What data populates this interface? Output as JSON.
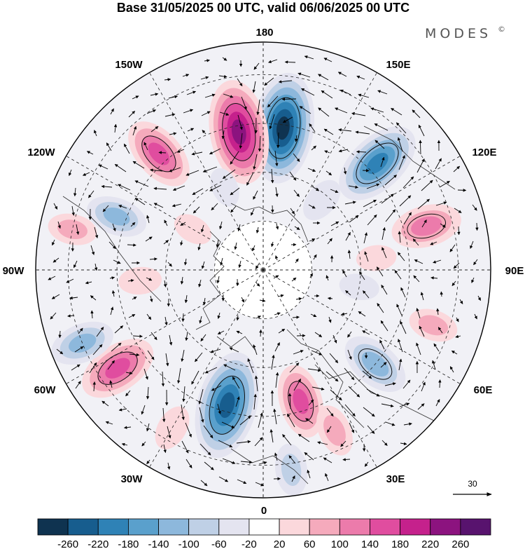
{
  "title": "Base 31/05/2025 00 UTC, valid 06/06/2025 00 UTC",
  "brand": {
    "name": "MODES",
    "mark": "©"
  },
  "longitude_labels": {
    "lon_180": "180",
    "lon_150E": "150E",
    "lon_120E": "120E",
    "lon_90E": "90E",
    "lon_60E": "60E",
    "lon_30E": "30E",
    "lon_0": "0",
    "lon_30W": "30W",
    "lon_60W": "60W",
    "lon_90W": "90W",
    "lon_120W": "120W",
    "lon_150W": "150W"
  },
  "reference_vector": {
    "label": "30"
  },
  "colorbar": {
    "colors": [
      "#0f3350",
      "#175d8e",
      "#2f82b6",
      "#5aa0cc",
      "#8db8dc",
      "#bfd0e6",
      "#e4e4f0",
      "#ffffff",
      "#fbd8dc",
      "#f5aabc",
      "#ec7bab",
      "#e04d9f",
      "#c5218c",
      "#8c137f",
      "#58136e"
    ],
    "ticks": [
      "-260",
      "-220",
      "-180",
      "-140",
      "-100",
      "-60",
      "-20",
      "20",
      "60",
      "100",
      "140",
      "180",
      "220",
      "260"
    ]
  },
  "anomaly_blobs": [
    {
      "lon": 172,
      "lat": 46,
      "value": -270
    },
    {
      "lon": -170,
      "lat": 47,
      "value": 250
    },
    {
      "lon": 133,
      "lat": 42,
      "value": -210
    },
    {
      "lon": -138,
      "lat": 42,
      "value": 160
    },
    {
      "lon": 105,
      "lat": 38,
      "value": 140
    },
    {
      "lon": -110,
      "lat": 42,
      "value": -110
    },
    {
      "lon": -102,
      "lat": 30,
      "value": 70
    },
    {
      "lon": -85,
      "lat": 52,
      "value": 50
    },
    {
      "lon": -56,
      "lat": 36,
      "value": 170
    },
    {
      "lon": -68,
      "lat": 30,
      "value": -120
    },
    {
      "lon": -15,
      "lat": 47,
      "value": -260
    },
    {
      "lon": 16,
      "lat": 48,
      "value": 150
    },
    {
      "lon": 50,
      "lat": 45,
      "value": -140
    },
    {
      "lon": 72,
      "lat": 35,
      "value": 70
    },
    {
      "lon": 96,
      "lat": 55,
      "value": 40
    },
    {
      "lon": 140,
      "lat": 62,
      "value": -60
    },
    {
      "lon": -155,
      "lat": 62,
      "value": -40
    },
    {
      "lon": -30,
      "lat": 34,
      "value": 60
    },
    {
      "lon": 8,
      "lat": 28,
      "value": -80
    },
    {
      "lon": 24,
      "lat": 36,
      "value": 80
    },
    {
      "lon": -120,
      "lat": 65,
      "value": 40
    },
    {
      "lon": 80,
      "lat": 60,
      "value": -40
    }
  ]
}
